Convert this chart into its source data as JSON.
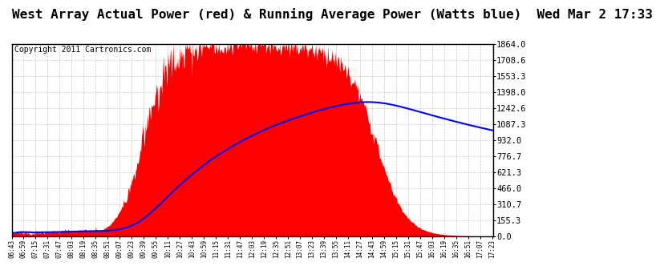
{
  "title": "West Array Actual Power (red) & Running Average Power (Watts blue)  Wed Mar 2 17:33",
  "copyright": "Copyright 2011 Cartronics.com",
  "yticks": [
    0.0,
    155.3,
    310.7,
    466.0,
    621.3,
    776.7,
    932.0,
    1087.3,
    1242.6,
    1398.0,
    1553.3,
    1708.6,
    1864.0
  ],
  "ymax": 1864.0,
  "ymin": 0.0,
  "bg_color": "#ffffff",
  "plot_bg": "#ffffff",
  "grid_color": "#bbbbbb",
  "actual_color": "#ff0000",
  "avg_color": "#0000ff",
  "title_fontsize": 11.5,
  "copyright_fontsize": 7
}
